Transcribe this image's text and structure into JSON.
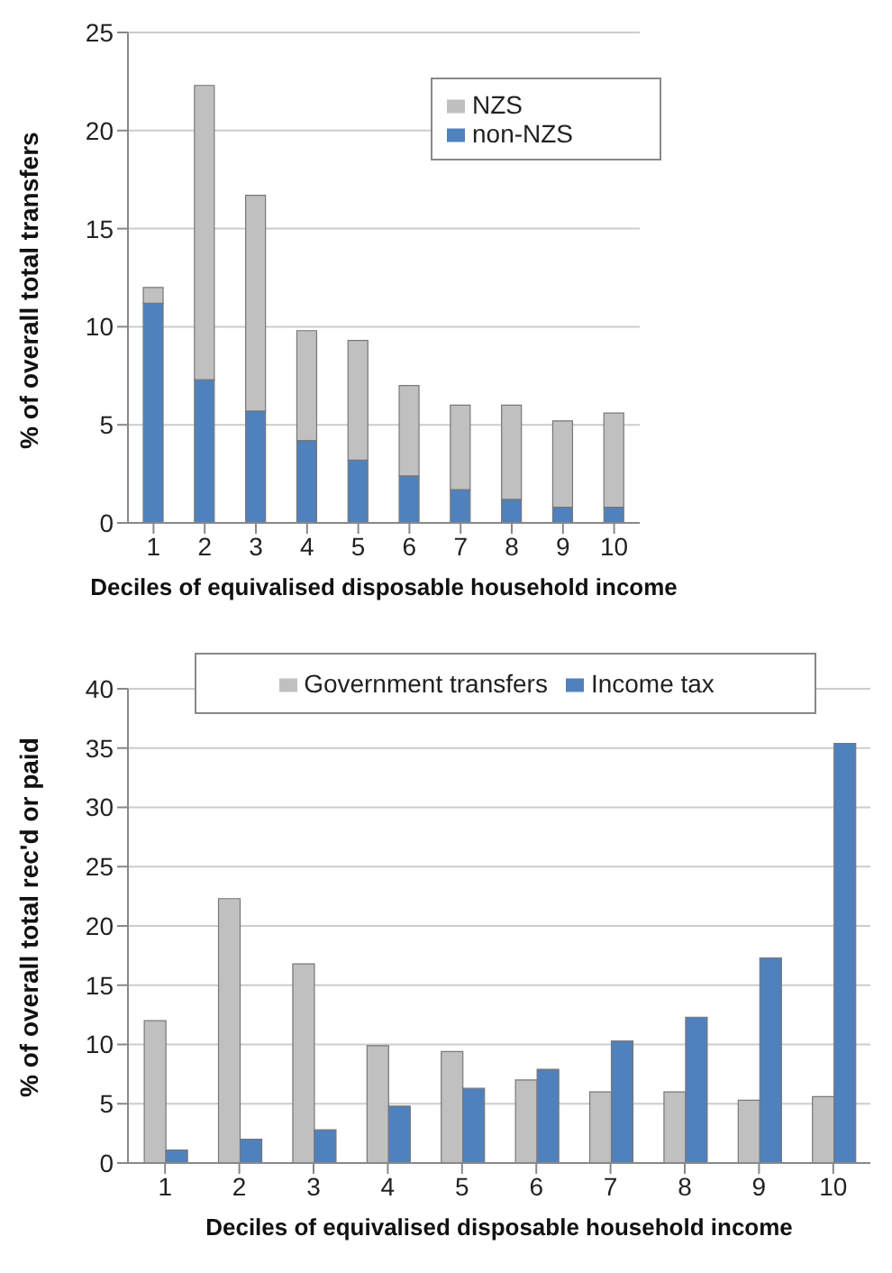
{
  "chart_data": [
    {
      "type": "bar",
      "stacked": true,
      "xlabel": "Deciles of equivalised disposable household income",
      "ylabel": "% of overall total transfers",
      "categories": [
        "1",
        "2",
        "3",
        "4",
        "5",
        "6",
        "7",
        "8",
        "9",
        "10"
      ],
      "ylim": [
        0,
        25
      ],
      "yticks": [
        0,
        5,
        10,
        15,
        20,
        25
      ],
      "grid": "y",
      "legend": "top right",
      "series": [
        {
          "name": "non-NZS",
          "color": "#4f81bd",
          "values": [
            11.2,
            7.3,
            5.7,
            4.2,
            3.2,
            2.4,
            1.7,
            1.2,
            0.8,
            0.8
          ]
        },
        {
          "name": "NZS",
          "color": "#c0c0c0",
          "values": [
            0.8,
            15.0,
            11.0,
            5.6,
            6.1,
            4.6,
            4.3,
            4.8,
            4.4,
            4.8
          ]
        }
      ]
    },
    {
      "type": "bar",
      "xlabel": "Deciles of equivalised disposable household income",
      "ylabel": "% of overall total rec'd or paid",
      "categories": [
        "1",
        "2",
        "3",
        "4",
        "5",
        "6",
        "7",
        "8",
        "9",
        "10"
      ],
      "ylim": [
        0,
        40
      ],
      "yticks": [
        0,
        5,
        10,
        15,
        20,
        25,
        30,
        35,
        40
      ],
      "grid": "y",
      "legend": "top",
      "series": [
        {
          "name": "Government transfers",
          "color": "#c0c0c0",
          "values": [
            12.0,
            22.3,
            16.8,
            9.9,
            9.4,
            7.0,
            6.0,
            6.0,
            5.3,
            5.6
          ]
        },
        {
          "name": "Income tax",
          "color": "#4f81bd",
          "values": [
            1.1,
            2.0,
            2.8,
            4.8,
            6.3,
            7.9,
            10.3,
            12.3,
            17.3,
            35.4
          ]
        }
      ]
    }
  ]
}
